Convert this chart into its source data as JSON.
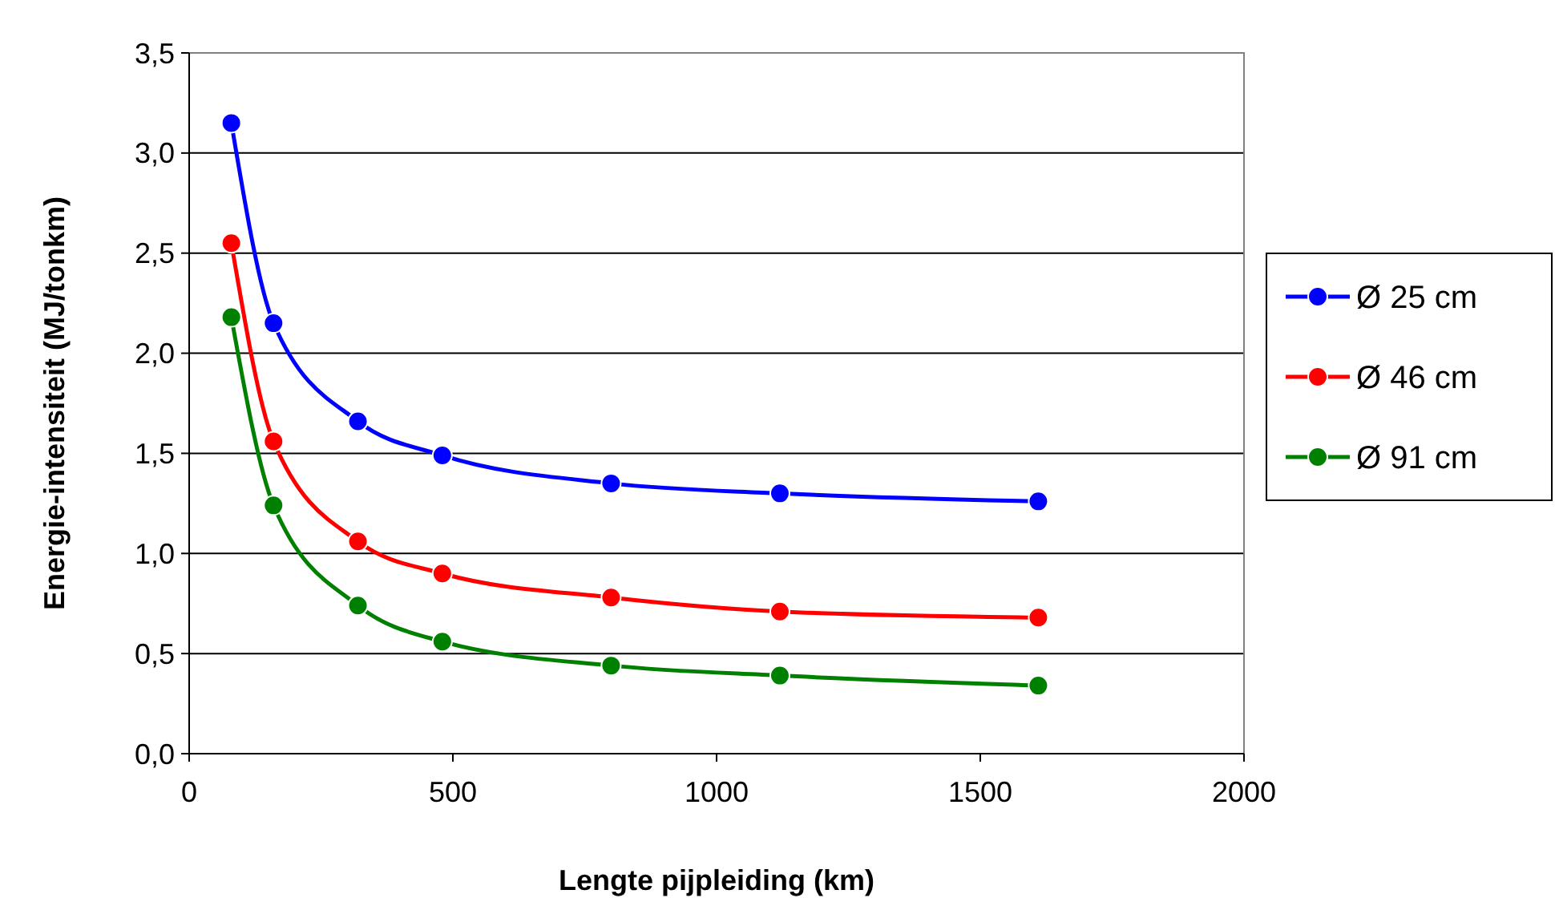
{
  "chart_data": {
    "type": "line",
    "xlabel": "Lengte pijpleiding (km)",
    "ylabel": "Energie-intensiteit (MJ/tonkm)",
    "x": [
      80,
      160,
      320,
      480,
      800,
      1120,
      1610
    ],
    "series": [
      {
        "name": "Ø 25 cm",
        "color": "#0000ff",
        "values": [
          3.15,
          2.15,
          1.66,
          1.49,
          1.35,
          1.3,
          1.26
        ]
      },
      {
        "name": "Ø 46 cm",
        "color": "#ff0000",
        "values": [
          2.55,
          1.56,
          1.06,
          0.9,
          0.78,
          0.71,
          0.68
        ]
      },
      {
        "name": "Ø 91 cm",
        "color": "#008000",
        "values": [
          2.18,
          1.24,
          0.74,
          0.56,
          0.44,
          0.39,
          0.34
        ]
      }
    ],
    "xlim": [
      0,
      2000
    ],
    "xticks": [
      0,
      500,
      1000,
      1500,
      2000
    ],
    "ylim": [
      0,
      3.5
    ],
    "yticks": [
      {
        "value": 0,
        "label": "0,0"
      },
      {
        "value": 0.5,
        "label": "0,5"
      },
      {
        "value": 1,
        "label": "1,0"
      },
      {
        "value": 1.5,
        "label": "1,5"
      },
      {
        "value": 2,
        "label": "2,0"
      },
      {
        "value": 2.5,
        "label": "2,5"
      },
      {
        "value": 3,
        "label": "3,0"
      },
      {
        "value": 3.5,
        "label": "3,5"
      }
    ],
    "grid": "y",
    "legend": "right",
    "marker": "circle",
    "line_style": "solid"
  }
}
